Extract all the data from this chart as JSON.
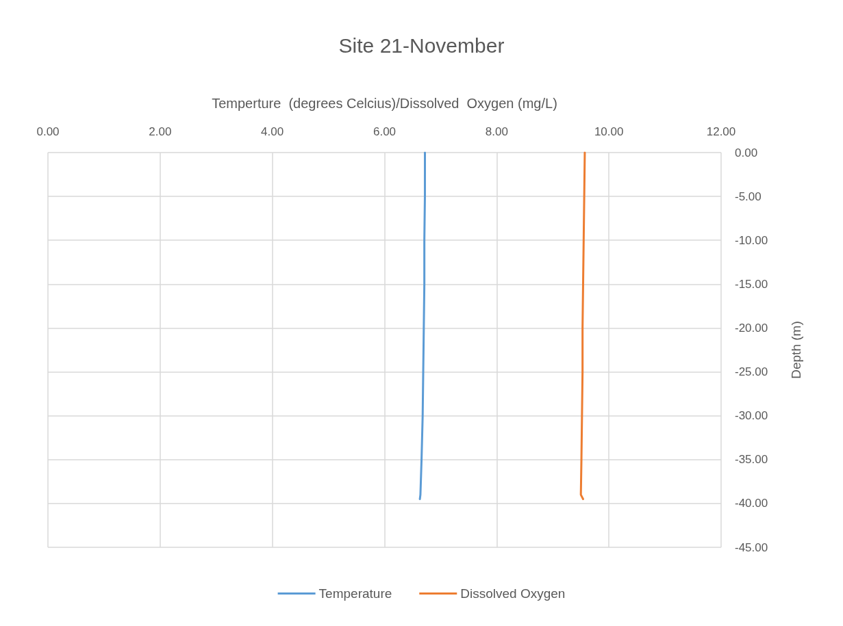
{
  "chart_data": {
    "type": "line",
    "title": "Site 21-November",
    "xlabel": "Temperture  (degrees Celcius)/Dissolved  Oxygen (mg/L)",
    "ylabel": "Depth (m)",
    "xlim": [
      0,
      12
    ],
    "xticks": [
      {
        "value": 0,
        "label": "0.00"
      },
      {
        "value": 2,
        "label": "2.00"
      },
      {
        "value": 4,
        "label": "4.00"
      },
      {
        "value": 6,
        "label": "6.00"
      },
      {
        "value": 8,
        "label": "8.00"
      },
      {
        "value": 10,
        "label": "10.00"
      },
      {
        "value": 12,
        "label": "12.00"
      }
    ],
    "ylim": [
      -45,
      0
    ],
    "yticks": [
      {
        "value": 0,
        "label": "0.00"
      },
      {
        "value": -5,
        "label": "-5.00"
      },
      {
        "value": -10,
        "label": "-10.00"
      },
      {
        "value": -15,
        "label": "-15.00"
      },
      {
        "value": -20,
        "label": "-20.00"
      },
      {
        "value": -25,
        "label": "-25.00"
      },
      {
        "value": -30,
        "label": "-30.00"
      },
      {
        "value": -35,
        "label": "-35.00"
      },
      {
        "value": -40,
        "label": "-40.00"
      },
      {
        "value": -45,
        "label": "-45.00"
      }
    ],
    "series": [
      {
        "name": "Temperature",
        "color": "#5b9bd5",
        "x": [
          6.72,
          6.72,
          6.71,
          6.71,
          6.7,
          6.69,
          6.68,
          6.66,
          6.64,
          6.63
        ],
        "values": [
          0,
          -5,
          -10,
          -15,
          -20,
          -25,
          -30,
          -35,
          -39,
          -39.5
        ]
      },
      {
        "name": "Dissolved Oxygen",
        "color": "#ed7d31",
        "x": [
          9.57,
          9.56,
          9.55,
          9.54,
          9.53,
          9.53,
          9.52,
          9.51,
          9.5,
          9.54
        ],
        "values": [
          0,
          -5,
          -10,
          -15,
          -20,
          -25,
          -30,
          -35,
          -39,
          -39.5
        ]
      }
    ],
    "grid": true,
    "legend": "bottom",
    "marker": "none",
    "line_style": "solid"
  }
}
